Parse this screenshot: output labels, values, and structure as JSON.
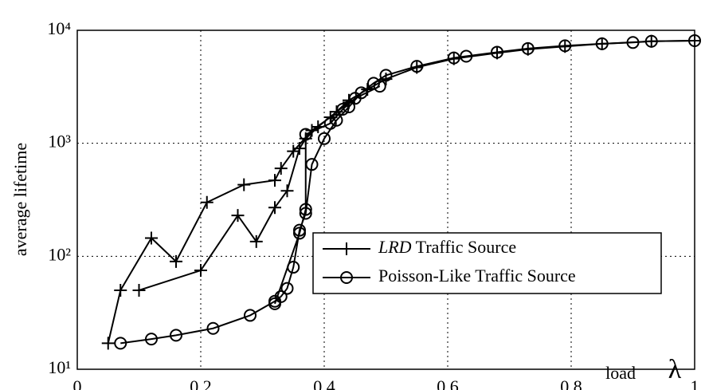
{
  "chart_data": {
    "type": "line",
    "ylabel": "average lifetime",
    "xlabel": "load",
    "xlabel_symbol": "λ",
    "xlim": [
      0,
      1
    ],
    "xticks": [
      0,
      0.2,
      0.4,
      0.6,
      0.8,
      1
    ],
    "ylim": [
      10,
      10000
    ],
    "log_y": true,
    "yticks": [
      {
        "value": 10,
        "label": "10¹"
      },
      {
        "value": 100,
        "label": "10²"
      },
      {
        "value": 1000,
        "label": "10³"
      },
      {
        "value": 10000,
        "label": "10⁴"
      }
    ],
    "grid": true,
    "legend": "lower right",
    "series": [
      {
        "name": "LRD Traffic Source",
        "name_italic": "LRD",
        "color": "#000",
        "marker": "plus",
        "x": [
          0.05,
          0.07,
          0.12,
          0.16,
          0.21,
          0.27,
          0.32,
          0.33,
          0.35,
          0.38,
          0.41,
          0.44,
          0.47,
          0.5,
          0.55,
          0.61,
          0.68,
          0.73,
          0.79,
          0.85,
          0.93,
          1.0,
          null,
          0.1,
          0.2,
          0.26,
          0.29,
          0.32,
          0.34,
          0.36,
          0.37,
          0.39,
          0.42,
          0.44
        ],
        "values": [
          17,
          50,
          145,
          90,
          300,
          430,
          470,
          600,
          850,
          1300,
          1700,
          2400,
          3000,
          3700,
          4700,
          5600,
          6300,
          6800,
          7200,
          7600,
          8000,
          8100,
          null,
          50,
          75,
          230,
          135,
          270,
          380,
          900,
          1100,
          1400,
          1900,
          2300
        ]
      },
      {
        "name": "Poisson-Like Traffic Source",
        "color": "#000",
        "marker": "circle",
        "x": [
          0.07,
          0.12,
          0.16,
          0.22,
          0.28,
          0.32,
          0.33,
          0.34,
          0.35,
          0.36,
          0.37,
          0.38,
          0.4,
          0.42,
          0.44,
          0.46,
          0.48,
          0.5,
          0.55,
          0.61,
          0.63,
          0.68,
          0.73,
          0.79,
          0.85,
          0.9,
          0.93,
          1.0,
          null,
          0.32,
          0.36,
          0.37,
          0.37,
          0.41,
          0.43,
          0.45,
          0.49
        ],
        "values": [
          17,
          18.5,
          20,
          23,
          30,
          40,
          44,
          52,
          80,
          170,
          240,
          650,
          1100,
          1600,
          2100,
          2800,
          3400,
          4000,
          4800,
          5700,
          5900,
          6400,
          6900,
          7300,
          7600,
          7800,
          8000,
          8100,
          null,
          38,
          160,
          260,
          1200,
          1500,
          2000,
          2500,
          3200
        ]
      }
    ]
  }
}
